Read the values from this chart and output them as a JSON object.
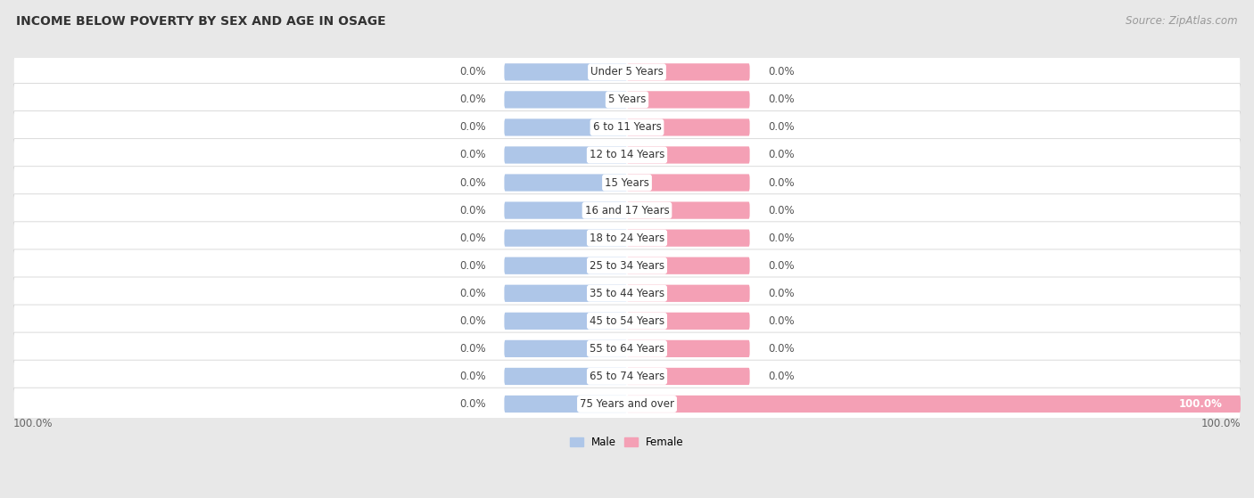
{
  "title": "INCOME BELOW POVERTY BY SEX AND AGE IN OSAGE",
  "source": "Source: ZipAtlas.com",
  "categories": [
    "Under 5 Years",
    "5 Years",
    "6 to 11 Years",
    "12 to 14 Years",
    "15 Years",
    "16 and 17 Years",
    "18 to 24 Years",
    "25 to 34 Years",
    "35 to 44 Years",
    "45 to 54 Years",
    "55 to 64 Years",
    "65 to 74 Years",
    "75 Years and over"
  ],
  "male_values": [
    0.0,
    0.0,
    0.0,
    0.0,
    0.0,
    0.0,
    0.0,
    0.0,
    0.0,
    0.0,
    0.0,
    0.0,
    0.0
  ],
  "female_values": [
    0.0,
    0.0,
    0.0,
    0.0,
    0.0,
    0.0,
    0.0,
    0.0,
    0.0,
    0.0,
    0.0,
    0.0,
    100.0
  ],
  "male_color": "#aec6e8",
  "female_color": "#f4a0b5",
  "male_label": "Male",
  "female_label": "Female",
  "xlim": 100,
  "bg_color": "#e8e8e8",
  "row_color": "#ffffff",
  "title_fontsize": 10,
  "source_fontsize": 8.5,
  "label_fontsize": 8.5,
  "cat_fontsize": 8.5,
  "bar_height": 0.62,
  "min_bar_width": 20,
  "row_rounding": 0.3
}
